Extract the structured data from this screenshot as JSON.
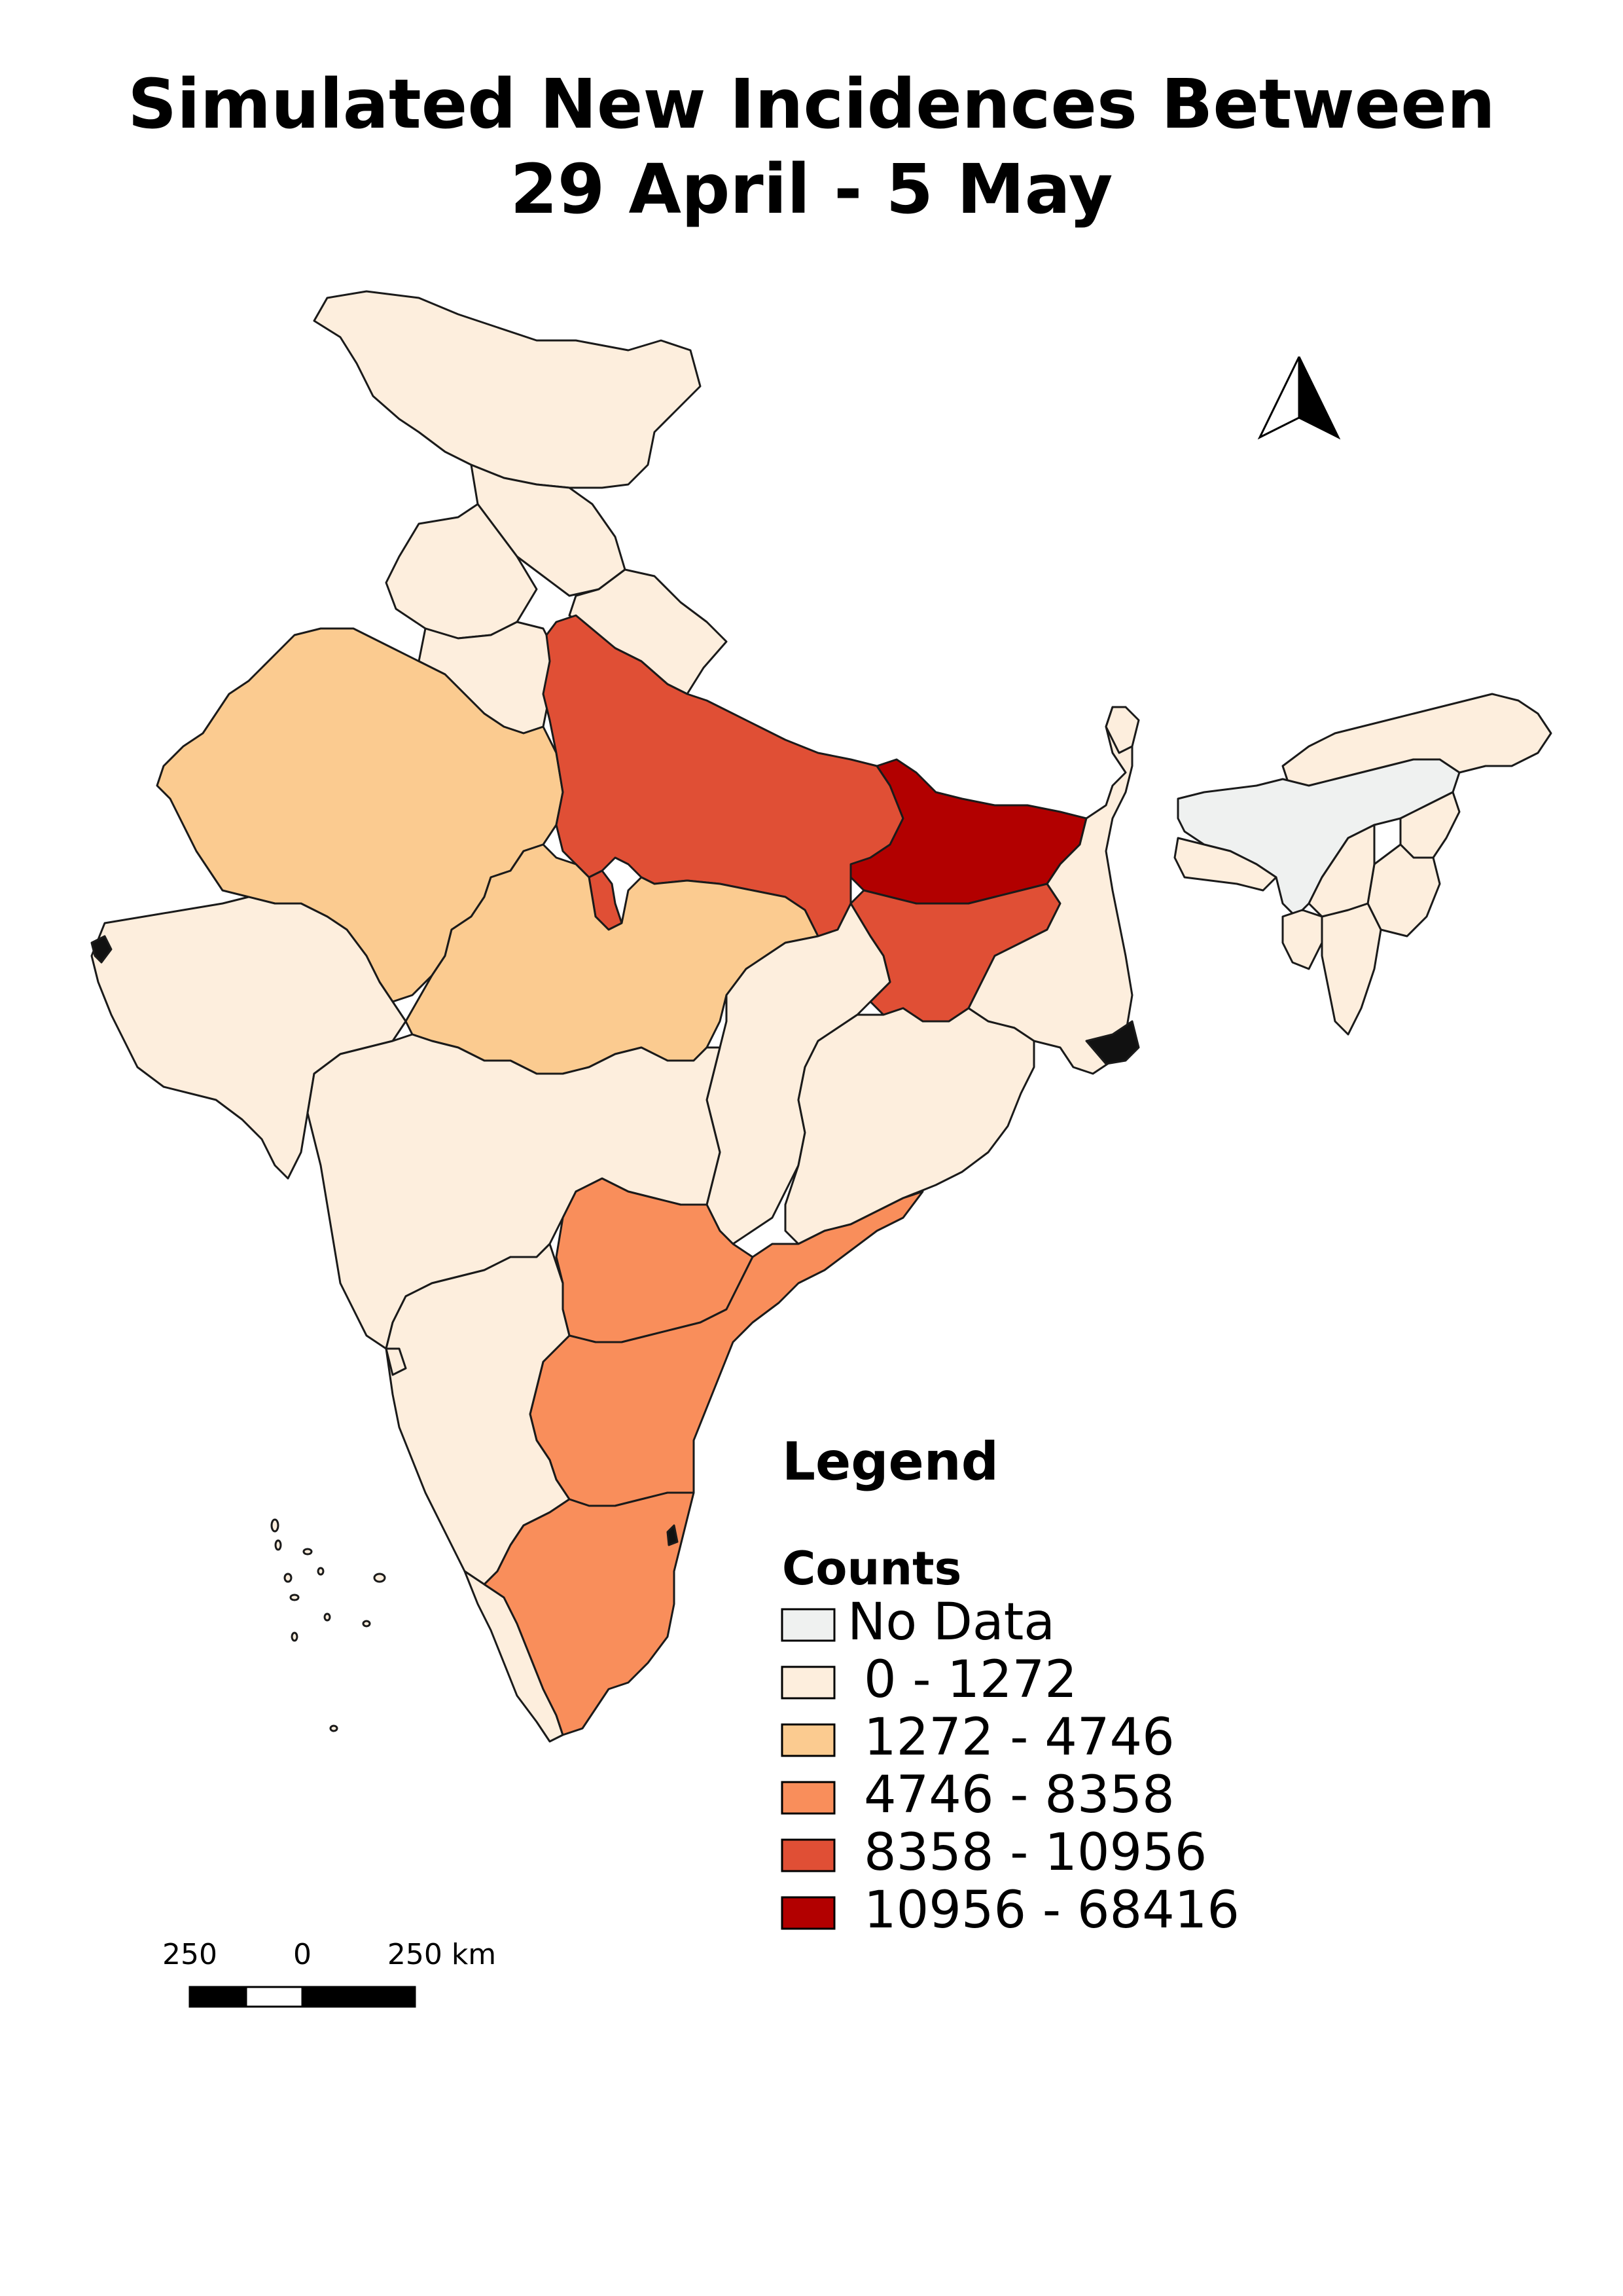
{
  "title": {
    "line1": "Simulated New Incidences Between",
    "line2": "29 April - 5 May"
  },
  "legend": {
    "heading": "Legend",
    "subheading": "Counts",
    "classes": [
      {
        "label": "No Data",
        "color": "#eff1f0"
      },
      {
        "label": "0 - 1272",
        "color": "#fdeedd"
      },
      {
        "label": "1272 - 4746",
        "color": "#fbcb90"
      },
      {
        "label": "4746 - 8358",
        "color": "#f98e5b"
      },
      {
        "label": "8358 - 10956",
        "color": "#e04f35"
      },
      {
        "label": "10956 - 68416",
        "color": "#b20000"
      }
    ]
  },
  "scale_bar": {
    "left": "250",
    "middle": "0",
    "right": "250 km"
  },
  "north_arrow": {
    "icon": "north-arrow-icon"
  }
}
